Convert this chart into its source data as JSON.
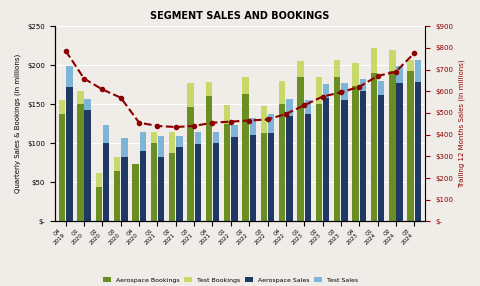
{
  "xlabels": [
    "Q4\n2019",
    "Q1\n2020",
    "Q2\n2020",
    "Q3\n2020",
    "Q4\n2020",
    "Q1\n2021",
    "Q2\n2021",
    "Q3\n2021",
    "Q4\n2021",
    "Q1\n2022",
    "Q2\n2022",
    "Q3\n2022",
    "Q4\n2022",
    "Q1\n2023",
    "Q2\n2023",
    "Q3\n2023",
    "Q4\n2023",
    "Q1\n2024",
    "Q2\n2024",
    "Q3\n2024"
  ],
  "aerospace_bookings": [
    138,
    150,
    44,
    65,
    73,
    100,
    87,
    147,
    160,
    125,
    163,
    113,
    150,
    185,
    150,
    185,
    173,
    190,
    193,
    192
  ],
  "test_bookings": [
    17,
    17,
    18,
    17,
    0,
    15,
    28,
    30,
    18,
    24,
    22,
    35,
    30,
    20,
    35,
    22,
    30,
    32,
    27,
    15
  ],
  "aerospace_sales": [
    172,
    142,
    101,
    82,
    90,
    82,
    95,
    99,
    100,
    108,
    111,
    113,
    135,
    138,
    158,
    155,
    167,
    162,
    177,
    178
  ],
  "test_sales": [
    27,
    15,
    22,
    25,
    25,
    27,
    15,
    15,
    15,
    16,
    22,
    25,
    22,
    18,
    18,
    22,
    15,
    18,
    22,
    28
  ],
  "trailing_12": [
    785,
    658,
    608,
    570,
    455,
    440,
    435,
    440,
    455,
    460,
    465,
    470,
    495,
    535,
    575,
    595,
    620,
    670,
    690,
    775
  ],
  "color_aero_booking": "#6b8e23",
  "color_test_booking": "#c8d96b",
  "color_aero_sales": "#1f3864",
  "color_test_sales": "#7fb4d9",
  "color_line": "#8b0000",
  "title": "SEGMENT SALES AND BOOKINGS",
  "ylabel_left": "Quarterly Sales & Bookings (in millions)",
  "ylabel_right": "Trailing 12 Months Sales (in millions)",
  "ylim_left": [
    0,
    250
  ],
  "ylim_right": [
    0,
    900
  ],
  "yticks_left": [
    0,
    50,
    100,
    150,
    200,
    250
  ],
  "yticks_right": [
    0,
    100,
    200,
    300,
    400,
    500,
    600,
    700,
    800,
    900
  ],
  "bg_color": "#f0ede8"
}
